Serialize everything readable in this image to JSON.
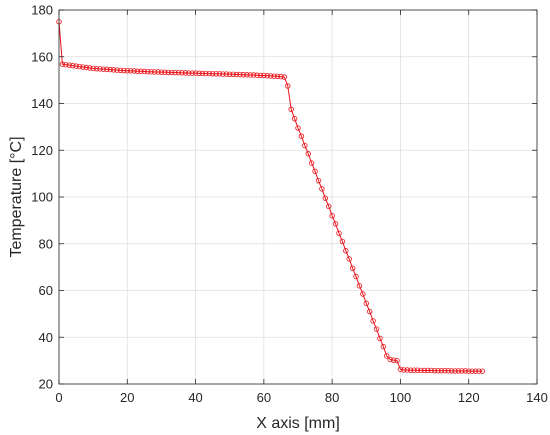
{
  "chart_data": {
    "type": "line",
    "title": "",
    "xlabel": "X axis [mm]",
    "ylabel": "Temperature [°C]",
    "xlim": [
      0,
      140
    ],
    "ylim": [
      20,
      180
    ],
    "xticks": [
      0,
      20,
      40,
      60,
      80,
      100,
      120,
      140
    ],
    "yticks": [
      20,
      40,
      60,
      80,
      100,
      120,
      140,
      160,
      180
    ],
    "grid": true,
    "marker": "circle",
    "line_color": "#e8141b",
    "series": [
      {
        "x": [
          0,
          1,
          2,
          3,
          4,
          5,
          6,
          7,
          8,
          9,
          10,
          11,
          12,
          13,
          14,
          15,
          16,
          17,
          18,
          19,
          20,
          21,
          22,
          23,
          24,
          25,
          26,
          27,
          28,
          29,
          30,
          31,
          32,
          33,
          34,
          35,
          36,
          37,
          38,
          39,
          40,
          41,
          42,
          43,
          44,
          45,
          46,
          47,
          48,
          49,
          50,
          51,
          52,
          53,
          54,
          55,
          56,
          57,
          58,
          59,
          60,
          61,
          62,
          63,
          64,
          65,
          66,
          67,
          68,
          69,
          70,
          71,
          72,
          73,
          74,
          75,
          76,
          77,
          78,
          79,
          80,
          81,
          82,
          83,
          84,
          85,
          86,
          87,
          88,
          89,
          90,
          91,
          92,
          93,
          94,
          95,
          96,
          97,
          98,
          99,
          100,
          101,
          102,
          103,
          104,
          105,
          106,
          107,
          108,
          109,
          110,
          111,
          112,
          113,
          114,
          115,
          116,
          117,
          118,
          119,
          120,
          121,
          122,
          123,
          124
        ],
        "y": [
          175,
          156.8,
          156.6,
          156.4,
          156.2,
          156.0,
          155.8,
          155.6,
          155.4,
          155.2,
          155.0,
          154.9,
          154.8,
          154.7,
          154.6,
          154.5,
          154.4,
          154.3,
          154.2,
          154.1,
          154.0,
          154.0,
          153.9,
          153.8,
          153.8,
          153.7,
          153.6,
          153.6,
          153.5,
          153.5,
          153.4,
          153.4,
          153.3,
          153.3,
          153.2,
          153.2,
          153.1,
          153.1,
          153.0,
          153.0,
          153.0,
          152.9,
          152.9,
          152.8,
          152.8,
          152.7,
          152.7,
          152.7,
          152.6,
          152.6,
          152.5,
          152.5,
          152.4,
          152.4,
          152.3,
          152.3,
          152.2,
          152.2,
          152.1,
          152.0,
          152.0,
          151.9,
          151.8,
          151.7,
          151.6,
          151.5,
          151.3,
          147.5,
          137.5,
          133.5,
          129.5,
          126.0,
          122.0,
          118.5,
          114.5,
          111.0,
          107.0,
          103.5,
          99.5,
          96.0,
          92.0,
          88.5,
          84.5,
          81.0,
          77.0,
          73.5,
          69.5,
          66.0,
          62.0,
          58.5,
          54.5,
          51.0,
          47.0,
          43.5,
          39.5,
          36.0,
          32.0,
          30.5,
          30.2,
          30.0,
          26.3,
          26.0,
          26.0,
          25.9,
          25.9,
          25.9,
          25.8,
          25.8,
          25.8,
          25.8,
          25.7,
          25.7,
          25.7,
          25.7,
          25.7,
          25.6,
          25.6,
          25.6,
          25.6,
          25.6,
          25.5,
          25.5,
          25.5,
          25.5,
          25.5
        ]
      }
    ]
  }
}
